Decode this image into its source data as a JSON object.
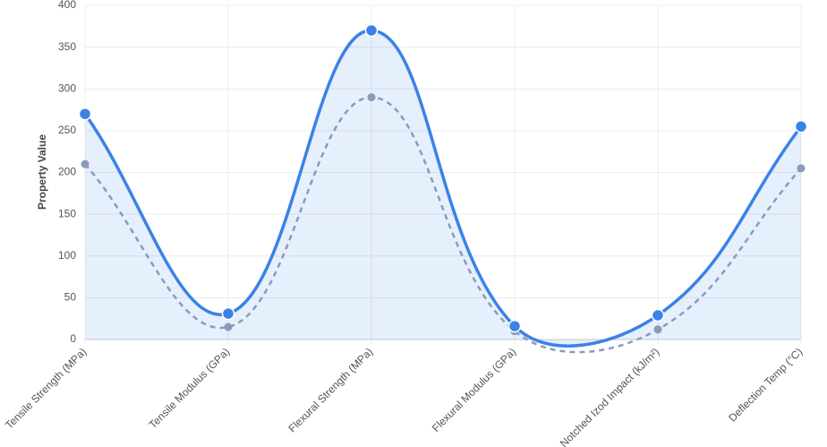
{
  "chart_data": {
    "type": "line",
    "y_label": "Property Value",
    "categories": [
      "Tensile Strength (MPa)",
      "Tensile Modulus (GPa)",
      "Flexural Strength (MPa)",
      "Flexural Modulus (GPa)",
      "Notched Izod Impact (kJ/m²)",
      "Deflection Temp (°C)"
    ],
    "series": [
      {
        "color": "#3b82e6",
        "fill": true,
        "dashed": false,
        "values": [
          270,
          31,
          370,
          16,
          29,
          255
        ]
      },
      {
        "color": "#8a9bb8",
        "fill": false,
        "dashed": true,
        "values": [
          210,
          15,
          290,
          10,
          12,
          205
        ]
      }
    ],
    "ylim": [
      0,
      400
    ],
    "yticks": [
      0,
      50,
      100,
      150,
      200,
      250,
      300,
      350,
      400
    ],
    "grid": true
  }
}
